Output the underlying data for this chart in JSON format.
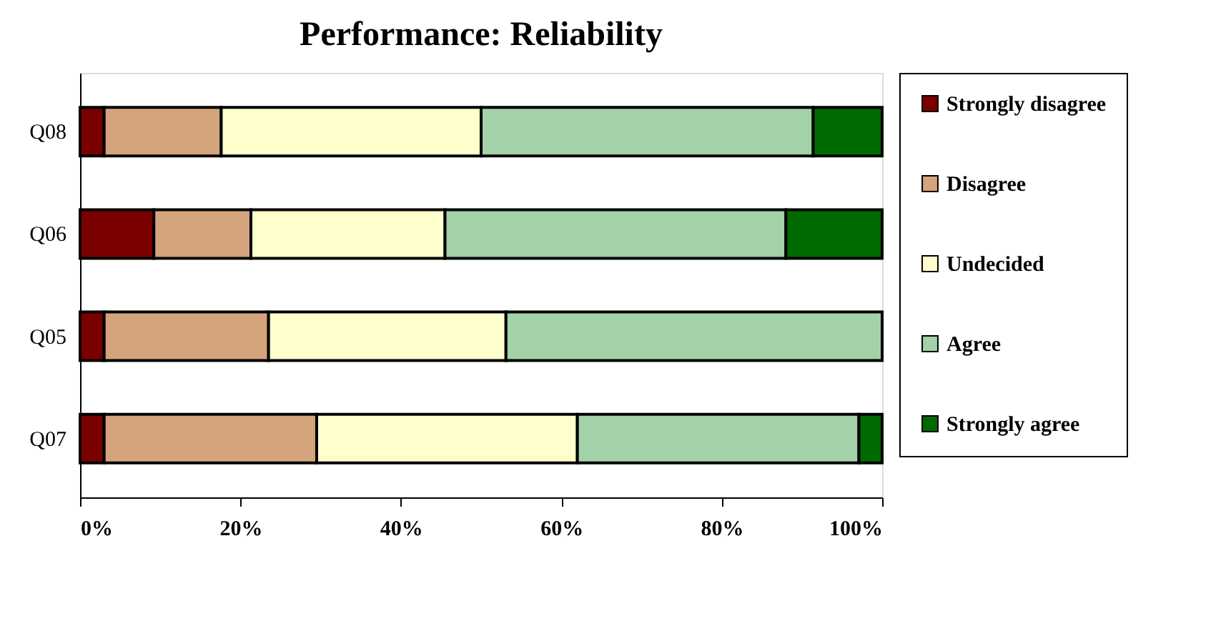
{
  "chart_data": {
    "type": "bar",
    "orientation": "horizontal",
    "stacked": true,
    "title": "Performance: Reliability",
    "categories": [
      "Q08",
      "Q06",
      "Q05",
      "Q07"
    ],
    "series": [
      {
        "name": "Strongly disagree",
        "color": "#7a0000",
        "values": [
          3.0,
          9.2,
          3.0,
          3.0
        ]
      },
      {
        "name": "Disagree",
        "color": "#d4a47c",
        "values": [
          14.6,
          12.1,
          20.5,
          26.5
        ]
      },
      {
        "name": "Undecided",
        "color": "#ffffcc",
        "values": [
          32.4,
          24.2,
          29.6,
          32.5
        ]
      },
      {
        "name": "Agree",
        "color": "#a3d1a8",
        "values": [
          41.4,
          42.5,
          46.9,
          35.1
        ]
      },
      {
        "name": "Strongly agree",
        "color": "#006a00",
        "values": [
          8.6,
          12.0,
          null,
          2.9
        ]
      }
    ],
    "xlim": [
      0,
      100
    ],
    "xticks": [
      {
        "value": 0,
        "label": "0%"
      },
      {
        "value": 20,
        "label": "20%"
      },
      {
        "value": 40,
        "label": "40%"
      },
      {
        "value": 60,
        "label": "60%"
      },
      {
        "value": 80,
        "label": "80%"
      },
      {
        "value": 100,
        "label": "100%"
      }
    ],
    "grid": false,
    "legend": "right"
  }
}
